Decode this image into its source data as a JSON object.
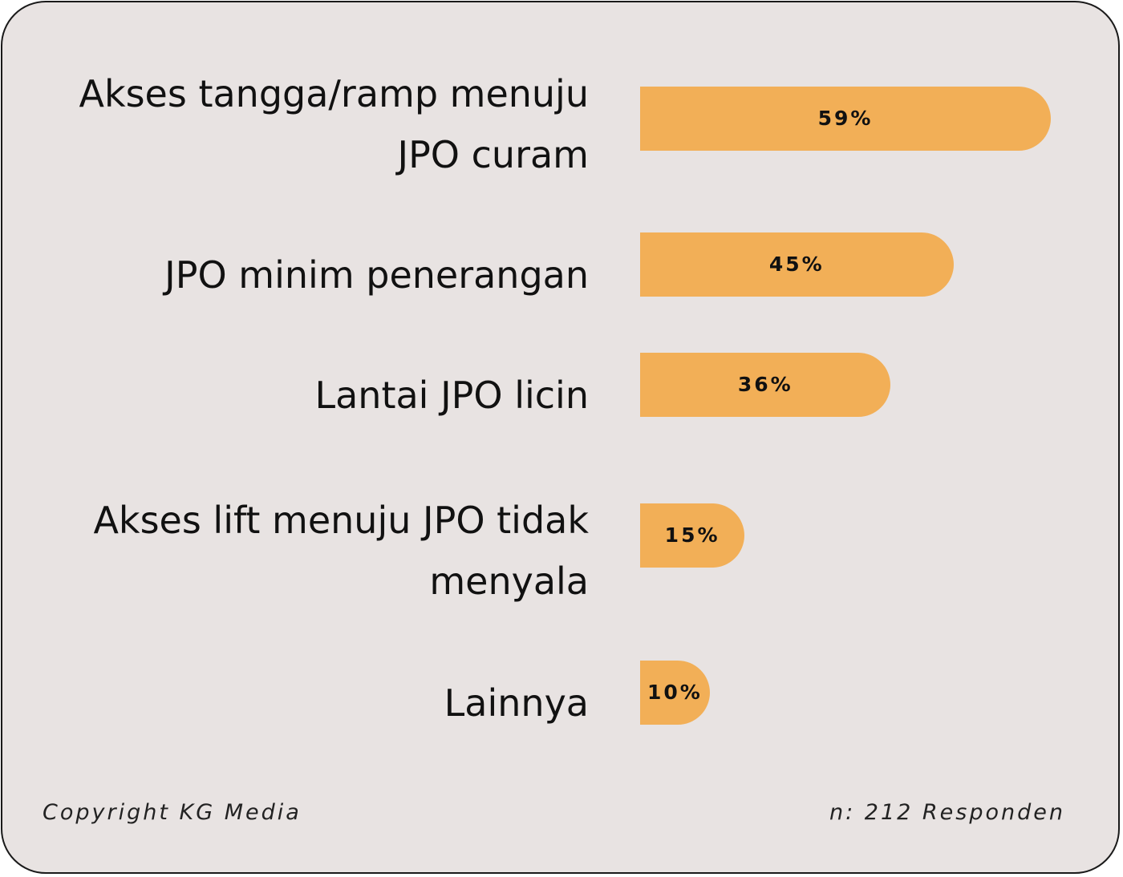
{
  "colors": {
    "background": "#e8e3e2",
    "bar": "#f2af57",
    "text": "#111111"
  },
  "chart_data": {
    "type": "bar",
    "orientation": "horizontal",
    "unit": "%",
    "xlim": [
      0,
      100
    ],
    "grid": false,
    "categories": [
      "Akses tangga/ramp menuju JPO curam",
      "JPO minim penerangan",
      "Lantai JPO licin",
      "Akses lift menuju JPO tidak menyala",
      "Lainnya"
    ],
    "values": [
      59,
      45,
      36,
      15,
      10
    ],
    "value_labels": [
      "59%",
      "45%",
      "36%",
      "15%",
      "10%"
    ]
  },
  "footer": {
    "copyright": "Copyright KG Media",
    "sample": "n: 212 Responden"
  }
}
